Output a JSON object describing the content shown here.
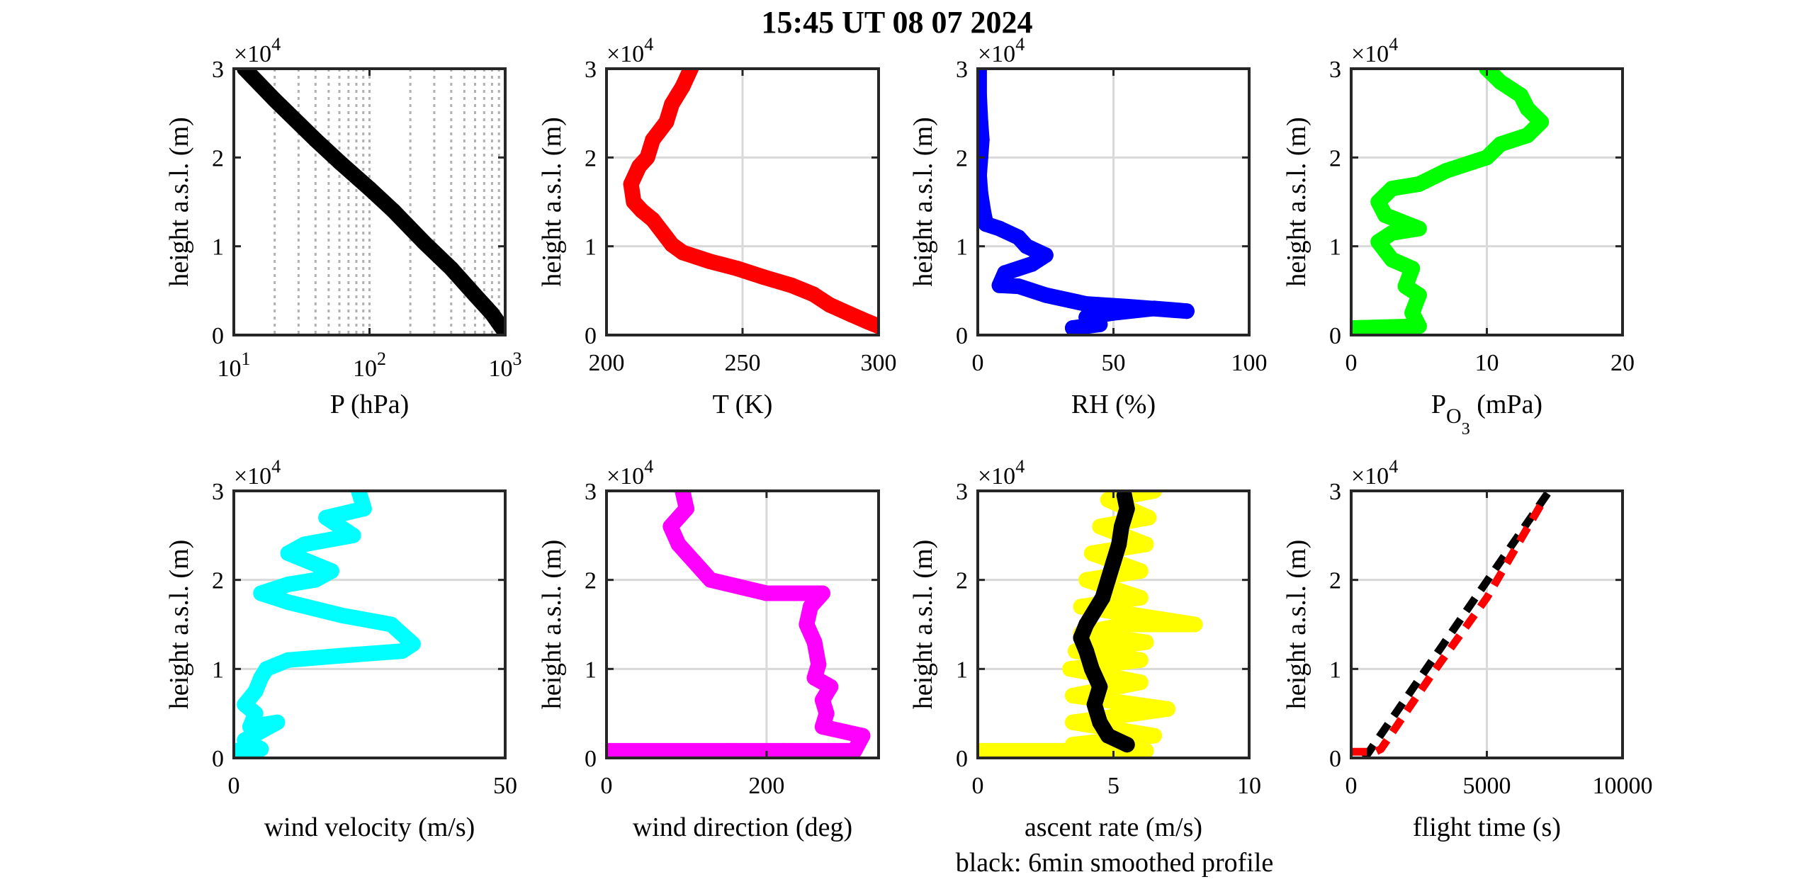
{
  "figure": {
    "title": "15:45 UT  08 07 2024",
    "note": "black: 6min smoothed profile"
  },
  "chart_data": [
    {
      "type": "scatter",
      "xlabel": "P (hPa)",
      "ylabel": "height a.s.l. (m)",
      "xscale": "log",
      "xlim": [
        10,
        1000
      ],
      "ylim": [
        0,
        30000
      ],
      "xticks": [
        10,
        100,
        1000
      ],
      "xtick_labels": [
        "10^1",
        "10^2",
        "10^3"
      ],
      "yticks": [
        0,
        10000,
        20000,
        30000
      ],
      "ytick_labels": [
        "0",
        "1",
        "2",
        "3"
      ],
      "y_exponent": "×10^4",
      "grid": "log-minor-dotted",
      "series": [
        {
          "color": "#000000",
          "style": "markers",
          "x": [
            12,
            20,
            40,
            60,
            100,
            150,
            250,
            400,
            600,
            800,
            980
          ],
          "y": [
            30000,
            26500,
            22000,
            19500,
            16500,
            14000,
            10500,
            7500,
            4500,
            2400,
            500
          ]
        }
      ]
    },
    {
      "type": "scatter",
      "xlabel": "T (K)",
      "ylabel": "height a.s.l. (m)",
      "xlim": [
        200,
        300
      ],
      "ylim": [
        0,
        30000
      ],
      "xticks": [
        200,
        250,
        300
      ],
      "xtick_labels": [
        "200",
        "250",
        "300"
      ],
      "yticks": [
        0,
        10000,
        20000,
        30000
      ],
      "ytick_labels": [
        "0",
        "1",
        "2",
        "3"
      ],
      "y_exponent": "×10^4",
      "grid": "major",
      "series": [
        {
          "color": "#ff0000",
          "style": "markers",
          "x": [
            300,
            296,
            290,
            282,
            276,
            268,
            258,
            248,
            238,
            228,
            224,
            222,
            217,
            213,
            210,
            209,
            212,
            215,
            217,
            222,
            224,
            228,
            231
          ],
          "y": [
            1000,
            1500,
            2300,
            3400,
            4600,
            5600,
            6500,
            7500,
            8300,
            9300,
            10200,
            11000,
            13000,
            14000,
            15000,
            17000,
            19000,
            20000,
            22000,
            24000,
            26000,
            28000,
            30000
          ]
        }
      ]
    },
    {
      "type": "scatter",
      "xlabel": "RH (%)",
      "ylabel": "height a.s.l. (m)",
      "xlim": [
        0,
        100
      ],
      "ylim": [
        0,
        30000
      ],
      "xticks": [
        0,
        50,
        100
      ],
      "xtick_labels": [
        "0",
        "50",
        "100"
      ],
      "yticks": [
        0,
        10000,
        20000,
        30000
      ],
      "ytick_labels": [
        "0",
        "1",
        "2",
        "3"
      ],
      "y_exponent": "×10^4",
      "grid": "major",
      "series": [
        {
          "color": "#0000ff",
          "style": "markers",
          "x": [
            35,
            45,
            40,
            50,
            65,
            77,
            55,
            40,
            25,
            15,
            8,
            10,
            20,
            25,
            18,
            15,
            8,
            3,
            2,
            1,
            0.5,
            1,
            1.5,
            1,
            0.5,
            0.5
          ],
          "y": [
            800,
            1200,
            2000,
            2500,
            3000,
            2700,
            3200,
            3500,
            4500,
            5500,
            5600,
            7000,
            8000,
            9000,
            10000,
            11000,
            12000,
            12500,
            14000,
            16000,
            18000,
            20000,
            22000,
            24000,
            27000,
            30000
          ]
        }
      ]
    },
    {
      "type": "scatter",
      "xlabel": "P",
      "xlabel_sub": "O",
      "xlabel_subsub": "3",
      "xlabel_suffix": " (mPa)",
      "ylabel": "height a.s.l. (m)",
      "xlim": [
        0,
        20
      ],
      "ylim": [
        0,
        30000
      ],
      "xticks": [
        0,
        10,
        20
      ],
      "xtick_labels": [
        "0",
        "10",
        "20"
      ],
      "yticks": [
        0,
        10000,
        20000,
        30000
      ],
      "ytick_labels": [
        "0",
        "1",
        "2",
        "3"
      ],
      "y_exponent": "×10^4",
      "grid": "major",
      "series": [
        {
          "color": "#00ff00",
          "style": "markers",
          "x": [
            0.2,
            5,
            4.5,
            5,
            4,
            4.5,
            3,
            2.5,
            2,
            3,
            5,
            2.5,
            2,
            3,
            5,
            7,
            10,
            11,
            13,
            14,
            13,
            12.5,
            11,
            10
          ],
          "y": [
            800,
            1000,
            2500,
            4500,
            5500,
            7500,
            8500,
            9500,
            10500,
            11500,
            12000,
            13500,
            15000,
            16500,
            17000,
            18500,
            20000,
            21500,
            22500,
            24000,
            25500,
            27000,
            28500,
            30000
          ]
        }
      ]
    },
    {
      "type": "scatter",
      "xlabel": "wind velocity (m/s)",
      "ylabel": "height a.s.l. (m)",
      "xlim": [
        0,
        50
      ],
      "ylim": [
        0,
        30000
      ],
      "xticks": [
        0,
        50
      ],
      "xtick_labels": [
        "0",
        "50"
      ],
      "yticks": [
        0,
        10000,
        20000,
        30000
      ],
      "ytick_labels": [
        "0",
        "1",
        "2",
        "3"
      ],
      "y_exponent": "×10^4",
      "grid": "major",
      "series": [
        {
          "color": "#00ffff",
          "style": "markers",
          "x": [
            0.5,
            5,
            2,
            8,
            3,
            4,
            2,
            4,
            5,
            6,
            10,
            20,
            31,
            33,
            29,
            20,
            10,
            5,
            10,
            15,
            18,
            14,
            10,
            13,
            22,
            17,
            24,
            23
          ],
          "y": [
            800,
            1000,
            2000,
            4000,
            3500,
            5000,
            6000,
            7500,
            9000,
            10000,
            11000,
            11500,
            12000,
            12800,
            15000,
            16000,
            17500,
            18500,
            19500,
            20000,
            21000,
            22000,
            23000,
            24000,
            25000,
            27000,
            28000,
            30000
          ]
        }
      ]
    },
    {
      "type": "scatter",
      "xlabel": "wind direction (deg)",
      "ylabel": "height a.s.l. (m)",
      "xlim": [
        0,
        340
      ],
      "ylim": [
        0,
        30000
      ],
      "xticks": [
        0,
        200
      ],
      "xtick_labels": [
        "0",
        "200"
      ],
      "yticks": [
        0,
        10000,
        20000,
        30000
      ],
      "ytick_labels": [
        "0",
        "1",
        "2",
        "3"
      ],
      "y_exponent": "×10^4",
      "grid": "major",
      "series": [
        {
          "color": "#ff00ff",
          "style": "markers",
          "x": [
            0,
            160,
            220,
            310,
            320,
            270,
            275,
            270,
            280,
            260,
            265,
            260,
            250,
            255,
            270,
            200,
            130,
            120,
            110,
            90,
            80,
            100,
            95
          ],
          "y": [
            800,
            800,
            800,
            800,
            2500,
            3500,
            5000,
            6500,
            8000,
            9000,
            10500,
            13000,
            15000,
            17000,
            18500,
            18500,
            20000,
            21000,
            22000,
            24000,
            26000,
            28000,
            30000
          ]
        }
      ]
    },
    {
      "type": "scatter",
      "xlabel": "ascent rate (m/s)",
      "ylabel": "height a.s.l. (m)",
      "xlim": [
        0,
        10
      ],
      "ylim": [
        0,
        30000
      ],
      "xticks": [
        0,
        5,
        10
      ],
      "xtick_labels": [
        "0",
        "5",
        "10"
      ],
      "yticks": [
        0,
        10000,
        20000,
        30000
      ],
      "ytick_labels": [
        "0",
        "1",
        "2",
        "3"
      ],
      "y_exponent": "×10^4",
      "grid": "major",
      "series": [
        {
          "color": "#ffff00",
          "style": "markers",
          "x": [
            0,
            6.2,
            3.5,
            6.5,
            3.5,
            7,
            3.5,
            6,
            3.4,
            6,
            3.6,
            6.2,
            3.8,
            5.5,
            8,
            3.8,
            6,
            4,
            6,
            4.2,
            6.2,
            4.5,
            6.3,
            4.8,
            6.5
          ],
          "y": [
            800,
            800,
            1500,
            2500,
            4000,
            5500,
            7000,
            8500,
            10000,
            11000,
            12000,
            13000,
            14000,
            15000,
            15000,
            17000,
            18000,
            20000,
            21000,
            23000,
            24000,
            26000,
            27000,
            29000,
            30000
          ]
        },
        {
          "color": "#000000",
          "style": "markers",
          "x": [
            5.5,
            4.8,
            4.5,
            4.3,
            4.5,
            4.2,
            4.0,
            3.8,
            4.0,
            4.3,
            4.6,
            4.8,
            5.0,
            5.2,
            5.3,
            5.5,
            5.4
          ],
          "y": [
            1500,
            2500,
            4000,
            6000,
            8000,
            10000,
            12000,
            13500,
            15000,
            16500,
            18000,
            20000,
            22000,
            24000,
            26000,
            28000,
            29500
          ]
        }
      ]
    },
    {
      "type": "line",
      "xlabel": "flight time (s)",
      "ylabel": "height a.s.l. (m)",
      "xlim": [
        0,
        10000
      ],
      "ylim": [
        0,
        30000
      ],
      "xticks": [
        0,
        5000,
        10000
      ],
      "xtick_labels": [
        "0",
        "5000",
        "10000"
      ],
      "yticks": [
        0,
        10000,
        20000,
        30000
      ],
      "ytick_labels": [
        "0",
        "1",
        "2",
        "3"
      ],
      "y_exponent": "×10^4",
      "grid": "major",
      "series": [
        {
          "color": "#000000",
          "style": "dashed",
          "x": [
            500,
            7300
          ],
          "y": [
            0,
            30000
          ]
        },
        {
          "color": "#ff0000",
          "style": "dashed",
          "x": [
            0,
            900,
            1100,
            3000,
            5000,
            7000
          ],
          "y": [
            700,
            700,
            1000,
            9500,
            18000,
            28500
          ]
        }
      ]
    }
  ]
}
